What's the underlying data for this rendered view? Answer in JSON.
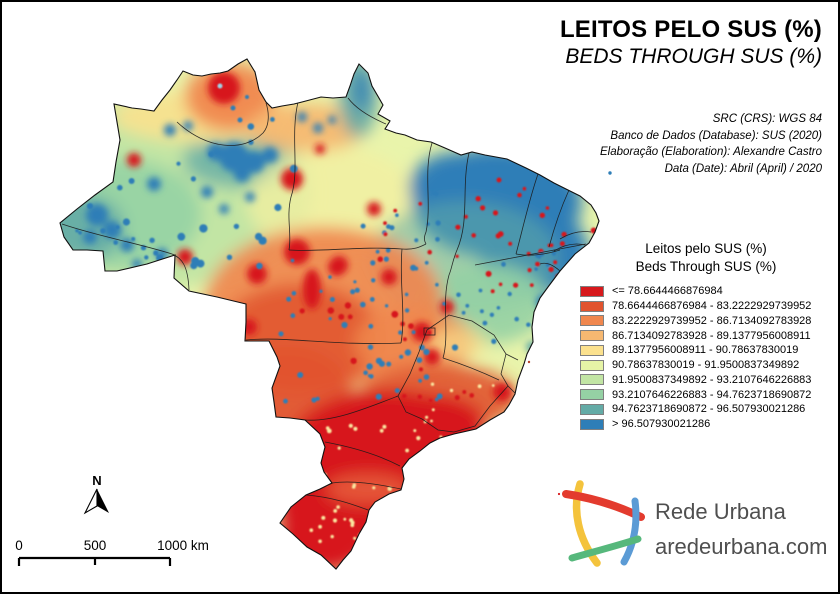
{
  "header": {
    "title_pt": "LEITOS PELO SUS (%)",
    "title_en": "BEDS THROUGH SUS (%)"
  },
  "metadata": {
    "lines": [
      "SRC (CRS): WGS 84",
      "Banco de Dados (Database): SUS (2020)",
      "Elaboração (Elaboration): Alexandre Castro",
      "Data (Date): Abril (April) / 2020"
    ]
  },
  "legend": {
    "title_pt": "Leitos pelo SUS (%)",
    "title_en": "Beds Through SUS (%)",
    "classes": [
      {
        "label": "<= 78.6644466876984",
        "color": "#d7191c"
      },
      {
        "label": "78.6644466876984 - 83.2222929739952",
        "color": "#e1532e"
      },
      {
        "label": "83.2222929739952 - 86.7134092783928",
        "color": "#f0874e"
      },
      {
        "label": "86.7134092783928 - 89.1377956008911",
        "color": "#f6b871"
      },
      {
        "label": "89.1377956008911 - 90.78637830019",
        "color": "#fbe18e"
      },
      {
        "label": "90.78637830019 - 91.9500837349892",
        "color": "#e6f4a6"
      },
      {
        "label": "91.9500837349892 - 93.2107646226883",
        "color": "#c2e5a4"
      },
      {
        "label": "93.2107646226883 - 94.7623718690872",
        "color": "#95d1a4"
      },
      {
        "label": "94.7623718690872 - 96.507930021286",
        "color": "#64aba6"
      },
      {
        "label": "> 96.507930021286",
        "color": "#2e7eb7"
      }
    ]
  },
  "scalebar": {
    "ticks": [
      "0",
      "500",
      "1000 km"
    ]
  },
  "north_arrow": {
    "label": "N"
  },
  "logo": {
    "line1": "Rede Urbana",
    "line2": "aredeurbana.com"
  }
}
